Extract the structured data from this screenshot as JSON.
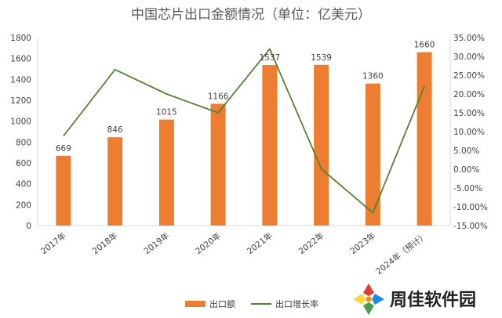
{
  "chart_data": {
    "type": "bar+line",
    "title": "中国芯片出口金额情况（单位：亿美元）",
    "categories": [
      "2017年",
      "2018年",
      "2019年",
      "2020年",
      "2021年",
      "2022年",
      "2023年",
      "2024年（预计）"
    ],
    "series": [
      {
        "name": "出口额",
        "type": "bar",
        "axis": "left",
        "values": [
          669,
          846,
          1015,
          1166,
          1537,
          1539,
          1360,
          1660
        ]
      },
      {
        "name": "出口增长率",
        "type": "line",
        "axis": "right",
        "values": [
          8.8,
          26.5,
          20.0,
          15.0,
          32.0,
          0.1,
          -11.6,
          22.1
        ]
      }
    ],
    "y_left": {
      "min": 0,
      "max": 1800,
      "step": 200,
      "ticks": [
        "0",
        "200",
        "400",
        "600",
        "800",
        "1000",
        "1200",
        "1400",
        "1600",
        "1800"
      ]
    },
    "y_right": {
      "min": -15,
      "max": 35,
      "step": 5,
      "ticks": [
        "-15.00%",
        "-10.00%",
        "-5.00%",
        "0.00%",
        "5.00%",
        "10.00%",
        "15.00%",
        "20.00%",
        "25.00%",
        "30.00%",
        "35.00%"
      ]
    },
    "data_labels": [
      "669",
      "846",
      "1015",
      "1166",
      "1537",
      "1539",
      "1360",
      "1660"
    ],
    "grid": false,
    "legend_position": "bottom",
    "colors": {
      "bar": "#ED7D31",
      "line": "#548235",
      "axis": "#D9D9D9"
    }
  },
  "watermark": {
    "text": "周佳软件园"
  }
}
